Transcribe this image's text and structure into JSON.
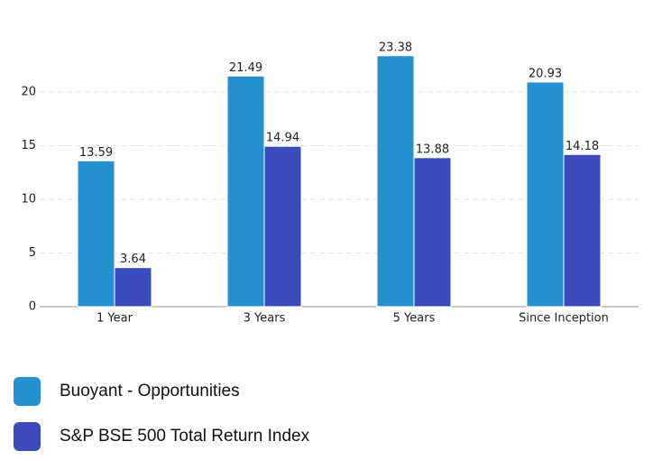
{
  "chart_data": {
    "type": "bar",
    "categories": [
      "1 Year",
      "3 Years",
      "5 Years",
      "Since Inception"
    ],
    "series": [
      {
        "name": "Buoyant - Opportunities",
        "color": "#2391d1",
        "values": [
          13.59,
          21.49,
          23.38,
          20.93
        ]
      },
      {
        "name": "S&P BSE 500 Total Return Index",
        "color": "#3a4cbc",
        "values": [
          3.64,
          14.94,
          13.88,
          14.18
        ]
      }
    ],
    "ylim": [
      0,
      25
    ],
    "yticks": [
      0,
      5,
      10,
      15,
      20
    ],
    "grid": true
  }
}
